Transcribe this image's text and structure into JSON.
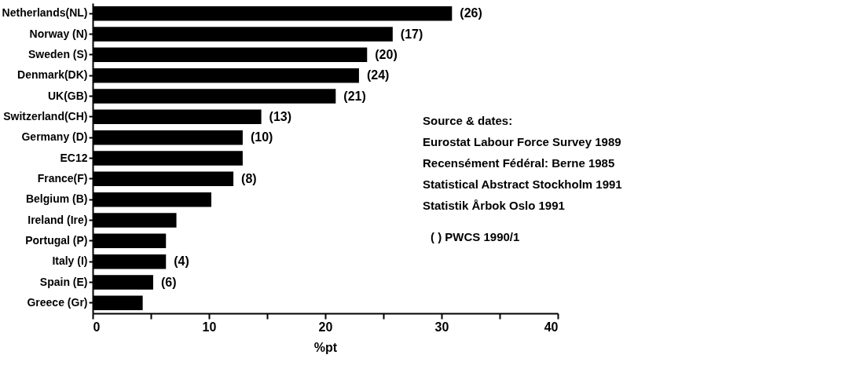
{
  "chart_data": {
    "type": "bar",
    "orientation": "horizontal",
    "xlabel": "%pt",
    "categories": [
      "Netherlands(NL)",
      "Norway (N)",
      "Sweden (S)",
      "Denmark(DK)",
      "UK(GB)",
      "Switzerland(CH)",
      "Germany (D)",
      "EC12",
      "France(F)",
      "Belgium (B)",
      "Ireland (Ire)",
      "Portugal (P)",
      "Italy (I)",
      "Spain (E)",
      "Greece (Gr)"
    ],
    "values": [
      30.9,
      25.8,
      23.6,
      22.9,
      20.9,
      14.5,
      12.9,
      12.9,
      12.1,
      10.2,
      7.2,
      6.3,
      6.3,
      5.2,
      4.3
    ],
    "color": "#000000",
    "xlim": [
      0,
      40
    ],
    "xticks": [
      0,
      {
        "value": 5,
        "label": null
      },
      10,
      {
        "value": 15,
        "label": null
      },
      20,
      {
        "value": 25,
        "label": null
      },
      30,
      {
        "value": 35,
        "label": null
      },
      40
    ],
    "annotations": [
      "Source & dates:",
      "Eurostat Labour Force Survey 1989",
      "Recensément Fédéral: Berne 1985",
      "Statistical Abstract Stockholm 1991",
      "Statistik Årbok Oslo 1991",
      "( ) PWCS 1990/1",
      {
        "text": "(26)",
        "x": 30.9,
        "y": "Netherlands(NL)"
      },
      {
        "text": "(17)",
        "x": 25.8,
        "y": "Norway (N)"
      },
      {
        "text": "(20)",
        "x": 23.6,
        "y": "Sweden (S)"
      },
      {
        "text": "(24)",
        "x": 22.9,
        "y": "Denmark(DK)"
      },
      {
        "text": "(21)",
        "x": 20.9,
        "y": "UK(GB)"
      },
      {
        "text": "(13)",
        "x": 14.5,
        "y": "Switzerland(CH)"
      },
      {
        "text": "(10)",
        "x": 12.9,
        "y": "Germany (D)"
      },
      {
        "text": "(8)",
        "x": 12.1,
        "y": "France(F)"
      },
      {
        "text": "(4)",
        "x": 6.3,
        "y": "Italy (I)"
      },
      {
        "text": "(6)",
        "x": 5.2,
        "y": "Spain (E)"
      }
    ]
  }
}
